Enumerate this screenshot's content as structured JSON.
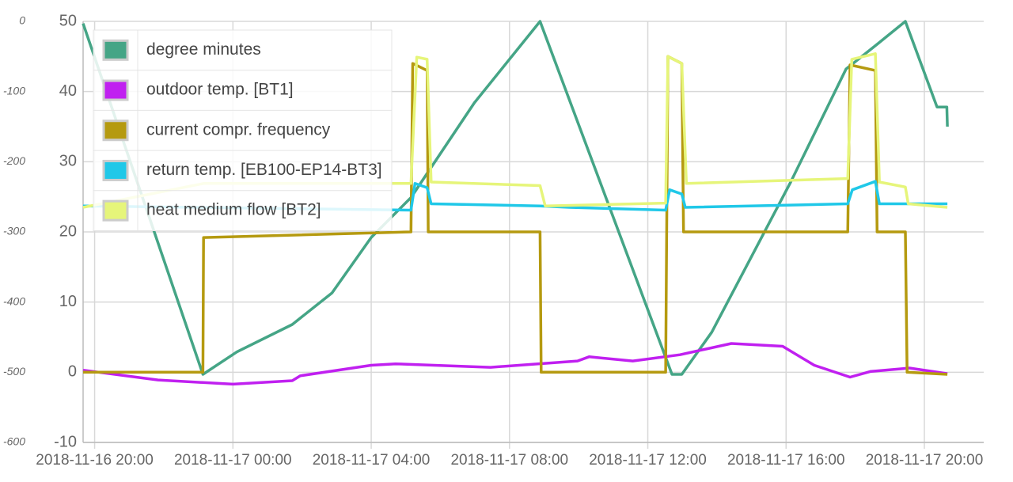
{
  "chart_data": {
    "type": "line",
    "xlim": [
      "2018-11-16 19:40",
      "2018-11-17 21:43"
    ],
    "xticks": [
      "2018-11-16 20:00",
      "2018-11-17 00:00",
      "2018-11-17 04:00",
      "2018-11-17 08:00",
      "2018-11-17 12:00",
      "2018-11-17 16:00",
      "2018-11-17 20:00"
    ],
    "ylim": [
      -10,
      50
    ],
    "yticks": [
      -10,
      0,
      10,
      20,
      30,
      40,
      50
    ],
    "y2lim": [
      -600,
      0
    ],
    "y2ticks": [
      -600,
      -500,
      -400,
      -300,
      -200,
      -100,
      0
    ],
    "grid": true,
    "legend": "top-left",
    "series": [
      {
        "name": "degree minutes",
        "color": "#45a586",
        "axis": "y2",
        "x": [
          "2018-11-16 19:40",
          "2018-11-16 23:08",
          "2018-11-17 00:07",
          "2018-11-17 01:43",
          "2018-11-17 02:52",
          "2018-11-17 04:00",
          "2018-11-17 05:09",
          "2018-11-17 06:59",
          "2018-11-17 08:53",
          "2018-11-17 12:42",
          "2018-11-17 12:59",
          "2018-11-17 13:51",
          "2018-11-17 16:08",
          "2018-11-17 17:44",
          "2018-11-17 18:39",
          "2018-11-17 19:27",
          "2018-11-17 20:22",
          "2018-11-17 20:39",
          "2018-11-17 20:40"
        ],
        "values": [
          -3,
          -503,
          -471,
          -432,
          -387,
          -308,
          -251,
          -116,
          0,
          -503,
          -503,
          -443,
          -229,
          -68,
          -32,
          0,
          -122,
          -122,
          -150
        ]
      },
      {
        "name": "outdoor temp. [BT1]",
        "color": "#c020f0",
        "x": [
          "2018-11-16 19:40",
          "2018-11-16 21:50",
          "2018-11-17 00:00",
          "2018-11-17 01:43",
          "2018-11-17 01:57",
          "2018-11-17 04:00",
          "2018-11-17 04:42",
          "2018-11-17 07:27",
          "2018-11-17 09:58",
          "2018-11-17 10:18",
          "2018-11-17 11:34",
          "2018-11-17 12:56",
          "2018-11-17 14:25",
          "2018-11-17 15:54",
          "2018-11-17 16:49",
          "2018-11-17 17:51",
          "2018-11-17 18:26",
          "2018-11-17 19:34",
          "2018-11-17 20:40"
        ],
        "values": [
          0.3,
          -1.1,
          -1.7,
          -1.2,
          -0.5,
          1.0,
          1.2,
          0.7,
          1.6,
          2.2,
          1.6,
          2.5,
          4.1,
          3.7,
          1.0,
          -0.7,
          0.1,
          0.6,
          -0.2
        ]
      },
      {
        "name": "current compr. frequency",
        "color": "#b59a10",
        "x": [
          "2018-11-16 19:40",
          "2018-11-16 23:08",
          "2018-11-16 23:09",
          "2018-11-17 05:09",
          "2018-11-17 05:12",
          "2018-11-17 05:37",
          "2018-11-17 05:39",
          "2018-11-17 08:53",
          "2018-11-17 08:55",
          "2018-11-17 12:31",
          "2018-11-17 12:35",
          "2018-11-17 12:59",
          "2018-11-17 13:02",
          "2018-11-17 17:47",
          "2018-11-17 17:51",
          "2018-11-17 18:35",
          "2018-11-17 18:38",
          "2018-11-17 19:27",
          "2018-11-17 19:30",
          "2018-11-17 20:40"
        ],
        "values": [
          0,
          0,
          19.2,
          20,
          44,
          43,
          20,
          20,
          0,
          0,
          45,
          44,
          20,
          20,
          43.8,
          43,
          20,
          20,
          0,
          -0.3
        ]
      },
      {
        "name": "return temp. [EB100-EP14-BT3]",
        "color": "#20c8e8",
        "x": [
          "2018-11-16 19:40",
          "2018-11-17 05:09",
          "2018-11-17 05:16",
          "2018-11-17 05:37",
          "2018-11-17 05:44",
          "2018-11-17 08:53",
          "2018-11-17 09:44",
          "2018-11-17 12:31",
          "2018-11-17 12:38",
          "2018-11-17 12:59",
          "2018-11-17 13:05",
          "2018-11-17 17:47",
          "2018-11-17 17:55",
          "2018-11-17 18:35",
          "2018-11-17 18:42",
          "2018-11-17 20:40"
        ],
        "values": [
          23.7,
          23.1,
          26.9,
          26.3,
          24.0,
          23.7,
          23.5,
          23.1,
          26.0,
          25.4,
          23.5,
          24.0,
          26.0,
          27.2,
          24.0,
          24.0
        ]
      },
      {
        "name": "heat medium flow [BT2]",
        "color": "#e6f57a",
        "x": [
          "2018-11-16 19:40",
          "2018-11-16 23:09",
          "2018-11-17 05:09",
          "2018-11-17 05:19",
          "2018-11-17 05:37",
          "2018-11-17 05:44",
          "2018-11-17 08:53",
          "2018-11-17 09:02",
          "2018-11-17 12:31",
          "2018-11-17 12:35",
          "2018-11-17 12:59",
          "2018-11-17 13:07",
          "2018-11-17 17:47",
          "2018-11-17 17:54",
          "2018-11-17 18:35",
          "2018-11-17 18:42",
          "2018-11-17 19:27",
          "2018-11-17 19:32",
          "2018-11-17 20:40"
        ],
        "values": [
          23.5,
          26.9,
          26.9,
          44.9,
          44.6,
          27.1,
          26.6,
          23.7,
          24.1,
          45,
          44,
          26.9,
          27.6,
          44.6,
          45.4,
          27.1,
          26.4,
          24.0,
          23.5
        ]
      }
    ]
  }
}
